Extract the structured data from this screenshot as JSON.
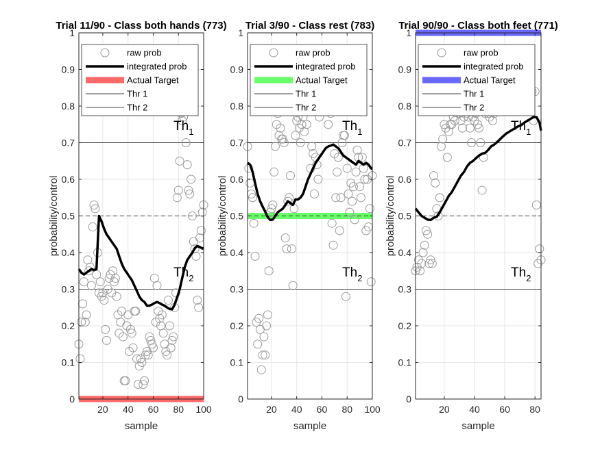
{
  "chart_data": [
    {
      "type": "scatter",
      "title": "Trial 11/90 - Class both hands (773)",
      "xlabel": "sample",
      "ylabel": "probability/control",
      "xlim": [
        1,
        100
      ],
      "ylim": [
        0,
        1
      ],
      "xticks": [
        20,
        40,
        60,
        80,
        100
      ],
      "yticks": [
        0,
        0.1,
        0.2,
        0.3,
        0.4,
        0.5,
        0.6,
        0.7,
        0.8,
        0.9,
        1
      ],
      "grid": true,
      "legend_position": "top",
      "thresholds": {
        "thr1": 0.7,
        "thr2": 0.3,
        "mid": 0.5
      },
      "threshold_labels": {
        "th1": "Th",
        "th1_sub": "1",
        "th2": "Th",
        "th2_sub": "2"
      },
      "target": {
        "value": 0,
        "color": "#ff4d4d"
      },
      "legend": [
        "raw prob",
        "integrated prob",
        "Actual Target",
        "Thr 1",
        "Thr 2"
      ],
      "raw_prob": {
        "x": [
          1,
          2,
          3,
          4,
          5,
          6,
          7,
          8,
          9,
          10,
          11,
          12,
          13,
          14,
          15,
          16,
          17,
          18,
          19,
          20,
          21,
          22,
          23,
          24,
          25,
          26,
          27,
          28,
          29,
          30,
          31,
          32,
          33,
          34,
          35,
          36,
          37,
          38,
          39,
          40,
          41,
          42,
          43,
          44,
          45,
          46,
          47,
          48,
          49,
          50,
          51,
          52,
          53,
          54,
          55,
          56,
          57,
          58,
          59,
          60,
          61,
          62,
          63,
          64,
          65,
          66,
          67,
          68,
          69,
          70,
          71,
          72,
          73,
          74,
          75,
          76,
          77,
          78,
          79,
          80,
          81,
          82,
          83,
          84,
          85,
          86,
          87,
          88,
          89,
          90,
          91,
          92,
          93,
          94,
          95,
          96,
          97,
          98,
          99,
          100
        ],
        "y": [
          0.15,
          0.11,
          0.21,
          0.26,
          0.32,
          0.21,
          0.23,
          0.38,
          0.35,
          0.36,
          0.31,
          0.47,
          0.53,
          0.52,
          0.34,
          0.4,
          0.29,
          0.32,
          0.28,
          0.29,
          0.27,
          0.19,
          0.16,
          0.3,
          0.33,
          0.34,
          0.29,
          0.35,
          0.32,
          0.33,
          0.28,
          0.23,
          0.18,
          0.21,
          0.24,
          0.17,
          0.05,
          0.05,
          0.2,
          0.23,
          0.13,
          0.19,
          0.18,
          0.14,
          0.24,
          0.24,
          0.11,
          0.04,
          0.09,
          0.11,
          0.1,
          0.04,
          0.05,
          0.12,
          0.13,
          0.12,
          0.17,
          0.16,
          0.15,
          0.14,
          0.33,
          0.21,
          0.31,
          0.24,
          0.22,
          0.2,
          0.23,
          0.18,
          0.15,
          0.13,
          0.12,
          0.27,
          0.2,
          0.14,
          0.16,
          0.17,
          0.25,
          0.29,
          0.55,
          0.57,
          0.65,
          0.78,
          0.76,
          0.77,
          0.8,
          0.7,
          0.64,
          0.57,
          0.56,
          0.6,
          0.5,
          0.43,
          0.41,
          0.39,
          0.27,
          0.25,
          0.44,
          0.46,
          0.51,
          0.53
        ]
      },
      "integrated_prob": {
        "x": [
          1,
          3,
          5,
          7,
          9,
          11,
          13,
          15,
          17,
          19,
          21,
          23,
          25,
          27,
          29,
          31,
          33,
          35,
          37,
          39,
          41,
          43,
          45,
          47,
          49,
          51,
          53,
          55,
          57,
          59,
          61,
          63,
          65,
          67,
          69,
          71,
          73,
          75,
          77,
          79,
          81,
          83,
          85,
          87,
          89,
          91,
          93,
          95,
          97,
          99,
          100
        ],
        "y": [
          0.355,
          0.345,
          0.34,
          0.345,
          0.35,
          0.355,
          0.352,
          0.355,
          0.5,
          0.485,
          0.465,
          0.45,
          0.44,
          0.43,
          0.42,
          0.41,
          0.39,
          0.37,
          0.355,
          0.345,
          0.335,
          0.325,
          0.31,
          0.295,
          0.28,
          0.27,
          0.265,
          0.255,
          0.255,
          0.258,
          0.262,
          0.265,
          0.262,
          0.258,
          0.255,
          0.25,
          0.246,
          0.245,
          0.258,
          0.278,
          0.3,
          0.33,
          0.36,
          0.38,
          0.39,
          0.4,
          0.412,
          0.418,
          0.415,
          0.411,
          0.413
        ]
      }
    },
    {
      "type": "scatter",
      "title": "Trial 3/90 - Class rest (783)",
      "xlabel": "sample",
      "ylabel": "probability/control",
      "xlim": [
        1,
        100
      ],
      "ylim": [
        0,
        1
      ],
      "xticks": [
        20,
        40,
        60,
        80,
        100
      ],
      "yticks": [
        0,
        0.1,
        0.2,
        0.3,
        0.4,
        0.5,
        0.6,
        0.7,
        0.8,
        0.9,
        1
      ],
      "grid": true,
      "legend_position": "top",
      "thresholds": {
        "thr1": 0.7,
        "thr2": 0.3,
        "mid": 0.5
      },
      "threshold_labels": {
        "th1": "Th",
        "th1_sub": "1",
        "th2": "Th",
        "th2_sub": "2"
      },
      "target": {
        "value": 0.5,
        "color": "#4dff4d"
      },
      "legend": [
        "raw prob",
        "integrated prob",
        "Actual Target",
        "Thr 1",
        "Thr 2"
      ],
      "raw_prob": {
        "x": [
          1,
          2,
          3,
          4,
          5,
          6,
          7,
          8,
          9,
          10,
          11,
          12,
          13,
          14,
          15,
          16,
          17,
          18,
          19,
          20,
          21,
          22,
          23,
          24,
          25,
          26,
          27,
          28,
          29,
          30,
          31,
          32,
          33,
          34,
          35,
          36,
          37,
          38,
          39,
          40,
          41,
          42,
          43,
          44,
          45,
          46,
          47,
          48,
          49,
          50,
          51,
          52,
          53,
          54,
          55,
          56,
          57,
          58,
          59,
          60,
          61,
          62,
          63,
          64,
          65,
          66,
          67,
          68,
          69,
          70,
          71,
          72,
          73,
          74,
          75,
          76,
          77,
          78,
          79,
          80,
          81,
          82,
          83,
          84,
          85,
          86,
          87,
          88,
          89,
          90,
          91,
          92,
          93,
          94,
          95,
          96,
          97,
          98,
          99,
          100
        ],
        "y": [
          0.69,
          0.63,
          0.59,
          0.56,
          0.55,
          0.48,
          0.39,
          0.21,
          0.15,
          0.22,
          0.19,
          0.08,
          0.12,
          0.17,
          0.12,
          0.2,
          0.23,
          0.35,
          0.51,
          0.52,
          0.53,
          0.62,
          0.69,
          0.75,
          0.78,
          0.72,
          0.74,
          0.71,
          0.71,
          0.7,
          0.44,
          0.41,
          0.54,
          0.55,
          0.61,
          0.41,
          0.31,
          0.52,
          0.72,
          0.76,
          0.77,
          0.74,
          0.7,
          0.75,
          0.77,
          0.73,
          0.79,
          0.75,
          0.8,
          0.82,
          0.63,
          0.69,
          0.67,
          0.56,
          0.66,
          0.64,
          0.6,
          0.77,
          0.82,
          0.85,
          0.87,
          0.9,
          0.88,
          0.86,
          0.75,
          0.82,
          0.78,
          0.48,
          0.42,
          0.67,
          0.55,
          0.62,
          0.66,
          0.46,
          0.55,
          0.7,
          0.72,
          0.72,
          0.28,
          0.63,
          0.56,
          0.51,
          0.59,
          0.54,
          0.58,
          0.49,
          0.62,
          0.68,
          0.66,
          0.58,
          0.55,
          0.66,
          0.63,
          0.6,
          0.46,
          0.6,
          0.47,
          0.52,
          0.32,
          0.61
        ]
      },
      "integrated_prob": {
        "x": [
          1,
          3,
          5,
          7,
          9,
          11,
          13,
          15,
          17,
          19,
          21,
          23,
          25,
          27,
          29,
          31,
          33,
          35,
          37,
          39,
          41,
          43,
          45,
          47,
          49,
          51,
          53,
          55,
          57,
          59,
          61,
          63,
          65,
          67,
          69,
          71,
          73,
          75,
          77,
          79,
          81,
          83,
          85,
          87,
          89,
          91,
          93,
          95,
          97,
          99,
          100
        ],
        "y": [
          0.645,
          0.64,
          0.62,
          0.59,
          0.56,
          0.54,
          0.525,
          0.512,
          0.497,
          0.489,
          0.49,
          0.5,
          0.51,
          0.515,
          0.52,
          0.53,
          0.54,
          0.535,
          0.53,
          0.545,
          0.545,
          0.55,
          0.56,
          0.58,
          0.6,
          0.615,
          0.63,
          0.645,
          0.655,
          0.665,
          0.675,
          0.685,
          0.69,
          0.692,
          0.695,
          0.69,
          0.685,
          0.675,
          0.665,
          0.66,
          0.655,
          0.65,
          0.645,
          0.64,
          0.65,
          0.645,
          0.64,
          0.645,
          0.64,
          0.63,
          0.628
        ]
      }
    },
    {
      "type": "scatter",
      "title": "Trial 90/90 - Class both feet (771)",
      "xlabel": "sample",
      "ylabel": "probability/control",
      "xlim": [
        1,
        84
      ],
      "ylim": [
        0,
        1
      ],
      "xticks": [
        20,
        40,
        60,
        80
      ],
      "yticks": [
        0,
        0.1,
        0.2,
        0.3,
        0.4,
        0.5,
        0.6,
        0.7,
        0.8,
        0.9,
        1
      ],
      "grid": true,
      "legend_position": "top",
      "thresholds": {
        "thr1": 0.7,
        "thr2": 0.3,
        "mid": 0.5
      },
      "threshold_labels": {
        "th1": "Th",
        "th1_sub": "1",
        "th2": "Th",
        "th2_sub": "2"
      },
      "target": {
        "value": 1,
        "color": "#4d4dff"
      },
      "legend": [
        "raw prob",
        "integrated prob",
        "Actual Target",
        "Thr 1",
        "Thr 2"
      ],
      "raw_prob": {
        "x": [
          1,
          2,
          3,
          4,
          5,
          6,
          7,
          8,
          9,
          10,
          11,
          12,
          13,
          14,
          15,
          16,
          17,
          18,
          19,
          20,
          21,
          22,
          23,
          24,
          25,
          26,
          27,
          28,
          29,
          30,
          31,
          32,
          33,
          34,
          35,
          36,
          37,
          38,
          39,
          40,
          41,
          42,
          43,
          44,
          45,
          46,
          47,
          48,
          49,
          50,
          51,
          52,
          53,
          54,
          55,
          56,
          57,
          58,
          59,
          60,
          61,
          62,
          63,
          64,
          65,
          66,
          67,
          68,
          69,
          70,
          71,
          72,
          73,
          74,
          75,
          76,
          77,
          78,
          79,
          80,
          81,
          82,
          83,
          84
        ],
        "y": [
          0.35,
          0.36,
          0.38,
          0.35,
          0.37,
          0.4,
          0.42,
          0.46,
          0.45,
          0.37,
          0.38,
          0.37,
          0.61,
          0.59,
          0.52,
          0.5,
          0.55,
          0.69,
          0.71,
          0.75,
          0.74,
          0.66,
          0.73,
          0.75,
          0.75,
          0.77,
          0.76,
          0.8,
          0.82,
          0.78,
          0.76,
          0.74,
          0.77,
          0.8,
          0.78,
          0.77,
          0.74,
          0.7,
          0.77,
          0.76,
          0.78,
          0.75,
          0.74,
          0.7,
          0.57,
          0.66,
          0.78,
          0.79,
          0.78,
          0.77,
          0.79,
          0.76,
          0.78,
          0.82,
          0.8,
          0.8,
          0.83,
          0.85,
          0.82,
          0.86,
          0.84,
          0.8,
          0.82,
          0.83,
          0.81,
          0.84,
          0.83,
          0.8,
          0.82,
          0.81,
          0.82,
          0.84,
          0.86,
          0.85,
          0.83,
          0.82,
          0.8,
          0.84,
          0.76,
          0.84,
          0.53,
          0.37,
          0.41,
          0.38
        ]
      },
      "integrated_prob": {
        "x": [
          1,
          3,
          5,
          7,
          9,
          11,
          13,
          15,
          17,
          19,
          21,
          23,
          25,
          27,
          29,
          31,
          33,
          35,
          37,
          39,
          41,
          43,
          45,
          47,
          49,
          51,
          53,
          55,
          57,
          59,
          61,
          63,
          65,
          67,
          69,
          71,
          73,
          75,
          77,
          79,
          81,
          83,
          84
        ],
        "y": [
          0.52,
          0.51,
          0.5,
          0.495,
          0.49,
          0.489,
          0.495,
          0.498,
          0.51,
          0.525,
          0.54,
          0.555,
          0.565,
          0.58,
          0.595,
          0.61,
          0.62,
          0.635,
          0.645,
          0.65,
          0.658,
          0.665,
          0.67,
          0.672,
          0.68,
          0.69,
          0.695,
          0.702,
          0.71,
          0.718,
          0.725,
          0.73,
          0.735,
          0.74,
          0.745,
          0.748,
          0.755,
          0.76,
          0.765,
          0.77,
          0.77,
          0.755,
          0.733
        ]
      }
    }
  ]
}
